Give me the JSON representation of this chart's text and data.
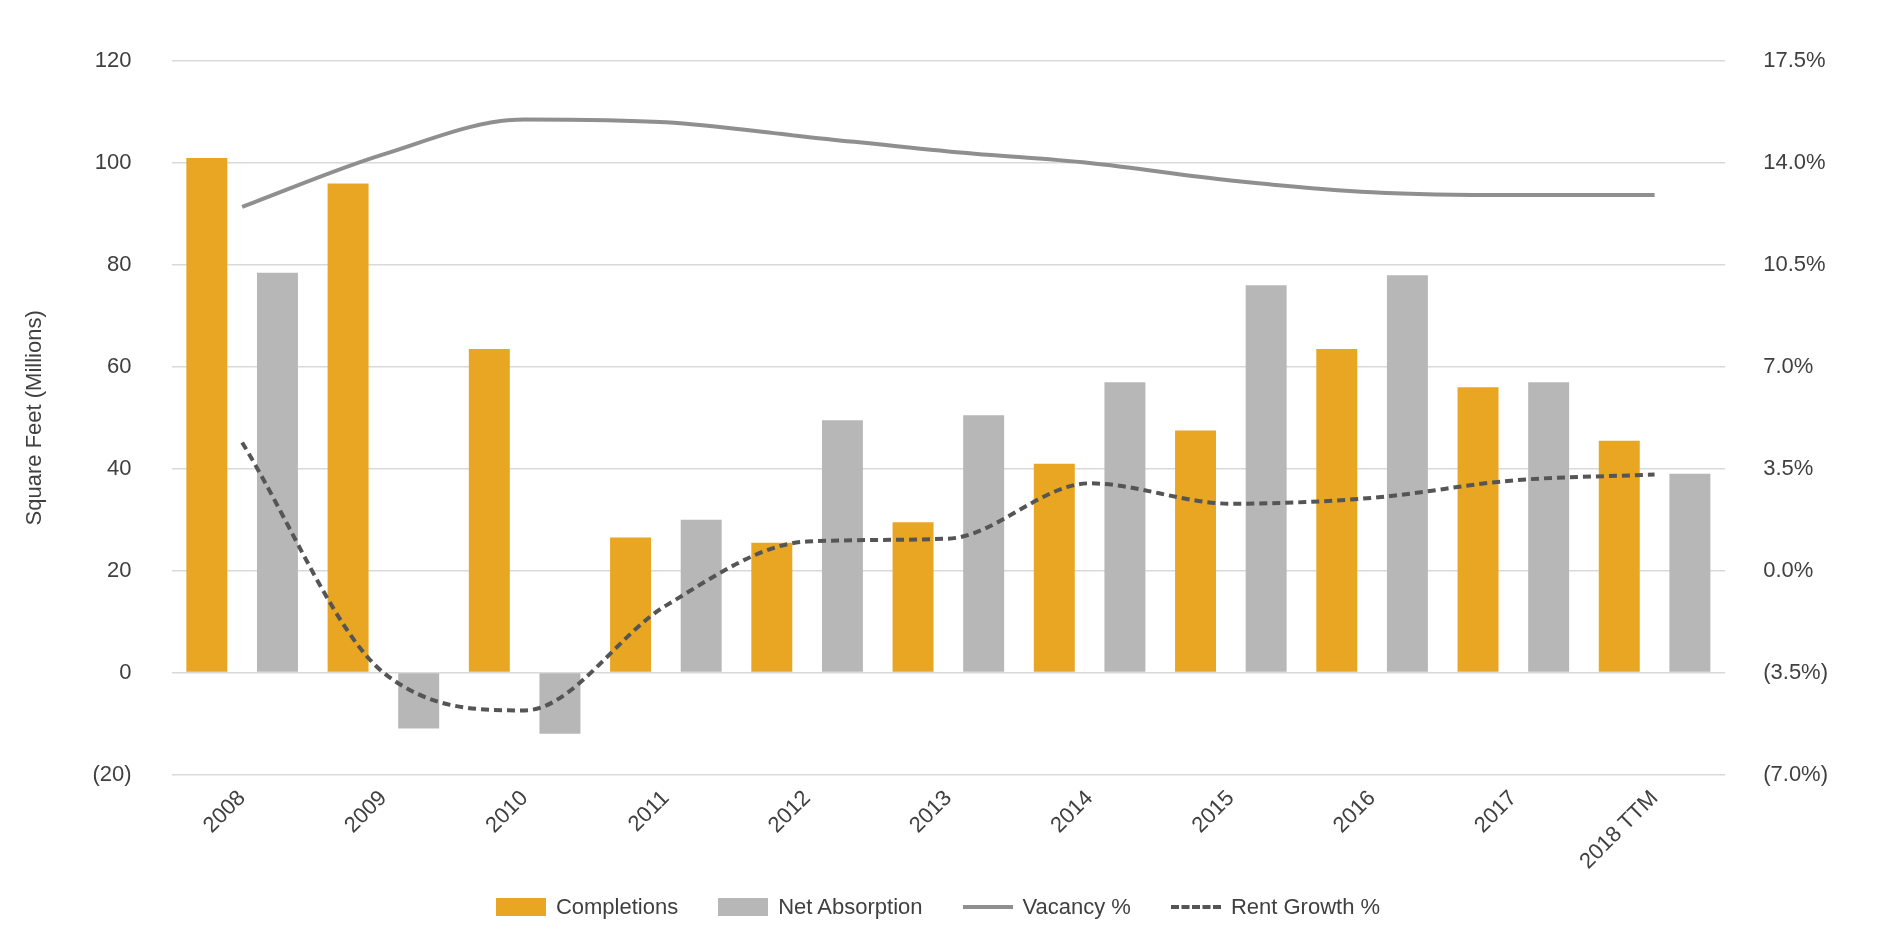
{
  "chart_data": {
    "type": "bar",
    "ylabel": "Square Feet (Millions)",
    "categories": [
      "2008",
      "2009",
      "2010",
      "2011",
      "2012",
      "2013",
      "2014",
      "2015",
      "2016",
      "2017",
      "2018 TTM"
    ],
    "series": [
      {
        "name": "Completions",
        "color": "#e8a623",
        "values": [
          101,
          96,
          63.5,
          26.5,
          25.5,
          29.5,
          41,
          47.5,
          63.5,
          56,
          45.5
        ]
      },
      {
        "name": "Net Absorption",
        "color": "#b7b7b7",
        "values": [
          78.5,
          -11,
          -12,
          30,
          49.5,
          50.5,
          57,
          76,
          78,
          57,
          39
        ]
      },
      {
        "name": "Vacancy %",
        "type": "line",
        "axis": "y2",
        "color": "#8f8f8f",
        "line_style": "solid",
        "values": [
          12.5,
          14.3,
          15.5,
          15.4,
          14.9,
          14.4,
          14.0,
          13.4,
          13.0,
          12.9,
          12.9
        ]
      },
      {
        "name": "Rent Growth %",
        "type": "line",
        "axis": "y2",
        "color": "#555555",
        "line_style": "dashed",
        "values": [
          4.4,
          -3.5,
          -4.8,
          -1.2,
          1.0,
          1.1,
          3.0,
          2.3,
          2.5,
          3.1,
          3.3
        ]
      }
    ],
    "ylim": [
      -20,
      120
    ],
    "yticks": [
      {
        "value": -20,
        "label": "(20)"
      },
      0,
      20,
      40,
      60,
      80,
      100,
      120
    ],
    "y2lim": [
      -7,
      17.5
    ],
    "y2ticks": [
      {
        "value": -7,
        "label": "(7.0%)"
      },
      {
        "value": -3.5,
        "label": "(3.5%)"
      },
      {
        "value": 0,
        "label": "0.0%"
      },
      {
        "value": 3.5,
        "label": "3.5%"
      },
      {
        "value": 7,
        "label": "7.0%"
      },
      {
        "value": 10.5,
        "label": "10.5%"
      },
      {
        "value": 14,
        "label": "14.0%"
      },
      {
        "value": 17.5,
        "label": "17.5%"
      }
    ],
    "grid": "y",
    "legend": "bottom",
    "marker": "none"
  }
}
